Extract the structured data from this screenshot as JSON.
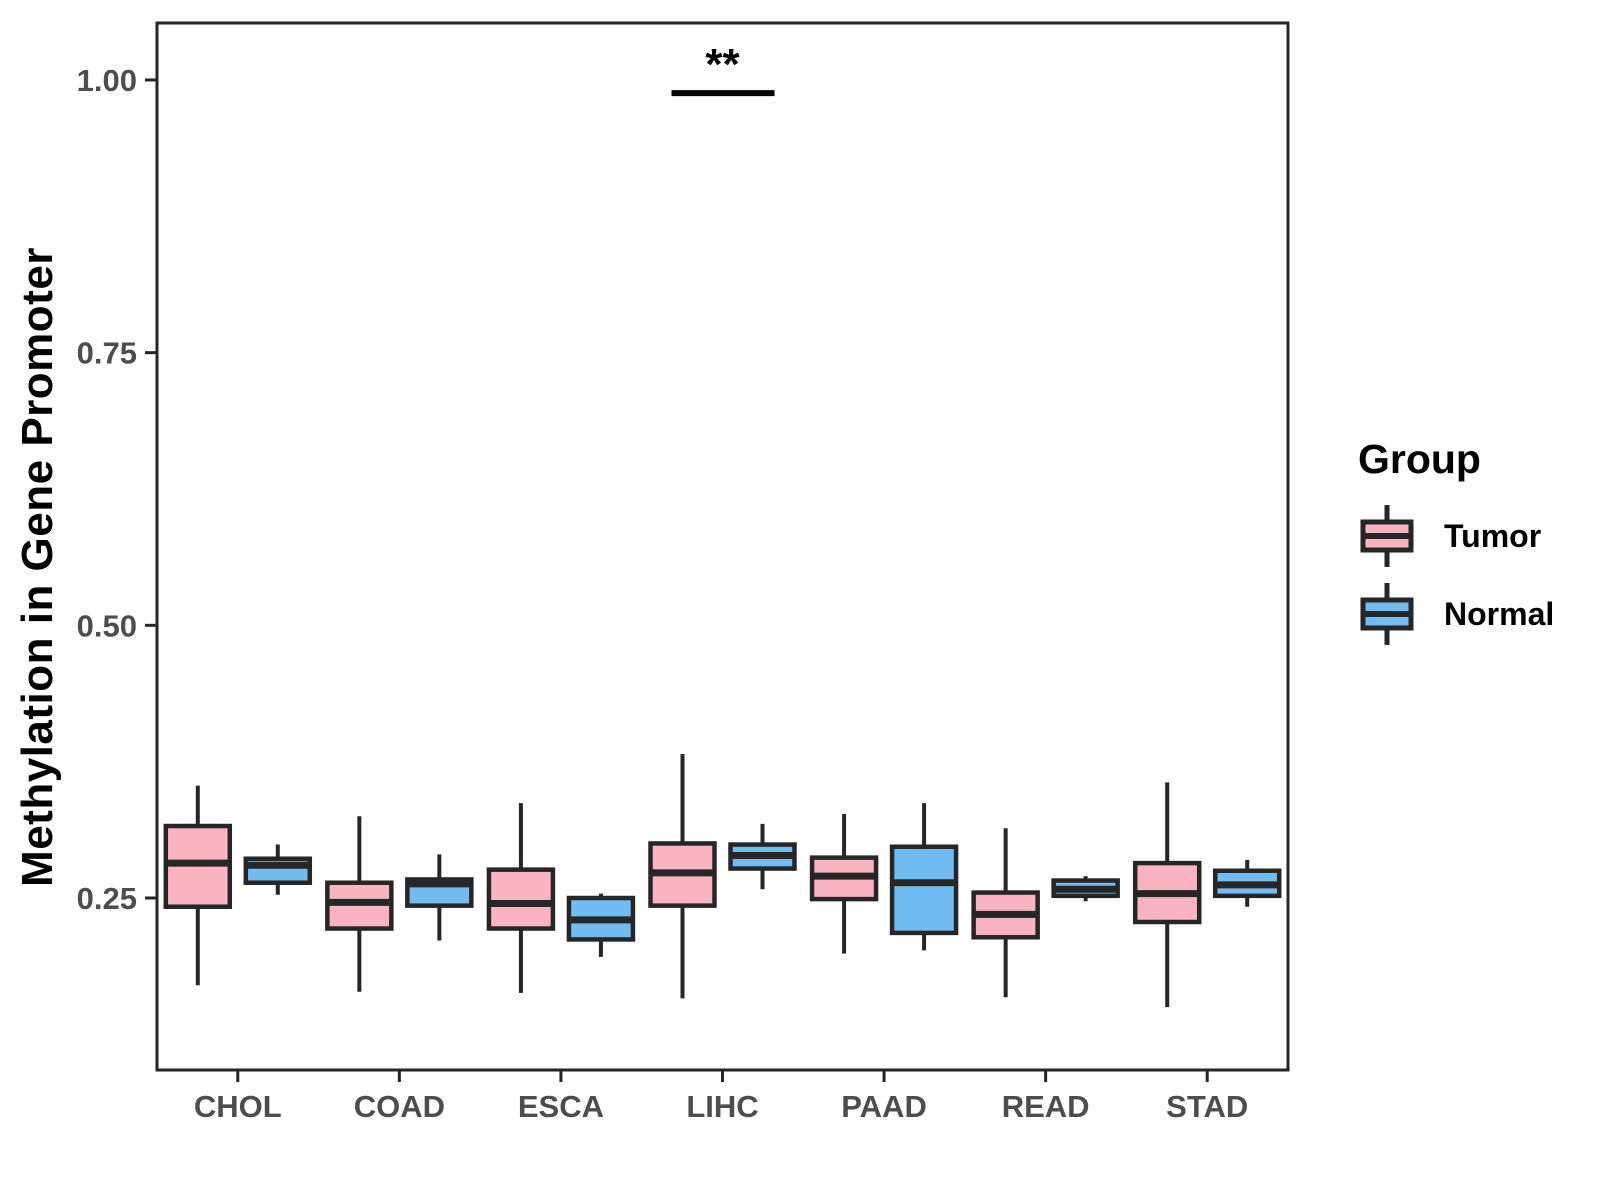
{
  "chart_data": {
    "type": "boxplot",
    "title": "",
    "xlabel": "",
    "ylabel": "Methylation in Gene Promoter",
    "categories": [
      "CHOL",
      "COAD",
      "ESCA",
      "LIHC",
      "PAAD",
      "READ",
      "STAD"
    ],
    "y_ticks": [
      {
        "label": "0.25",
        "value": 0.25
      },
      {
        "label": "0.50",
        "value": 0.5
      },
      {
        "label": "0.75",
        "value": 0.75
      },
      {
        "label": "1.00",
        "value": 1.0
      }
    ],
    "ylim": [
      0.092,
      1.052
    ],
    "grid": "off",
    "legend_position": "right",
    "series": [
      {
        "name": "Tumor",
        "color": "#FAB3C0",
        "boxes": [
          {
            "category": "CHOL",
            "min": 0.17,
            "q1": 0.242,
            "median": 0.282,
            "q3": 0.316,
            "max": 0.353
          },
          {
            "category": "COAD",
            "min": 0.164,
            "q1": 0.222,
            "median": 0.246,
            "q3": 0.264,
            "max": 0.325
          },
          {
            "category": "ESCA",
            "min": 0.163,
            "q1": 0.222,
            "median": 0.245,
            "q3": 0.276,
            "max": 0.337
          },
          {
            "category": "LIHC",
            "min": 0.158,
            "q1": 0.243,
            "median": 0.273,
            "q3": 0.3,
            "max": 0.382
          },
          {
            "category": "PAAD",
            "min": 0.199,
            "q1": 0.249,
            "median": 0.27,
            "q3": 0.287,
            "max": 0.327
          },
          {
            "category": "READ",
            "min": 0.159,
            "q1": 0.214,
            "median": 0.235,
            "q3": 0.255,
            "max": 0.314
          },
          {
            "category": "STAD",
            "min": 0.15,
            "q1": 0.228,
            "median": 0.254,
            "q3": 0.282,
            "max": 0.356
          }
        ]
      },
      {
        "name": "Normal",
        "color": "#71BCF2",
        "boxes": [
          {
            "category": "CHOL",
            "min": 0.253,
            "q1": 0.264,
            "median": 0.28,
            "q3": 0.286,
            "max": 0.299
          },
          {
            "category": "COAD",
            "min": 0.211,
            "q1": 0.243,
            "median": 0.263,
            "q3": 0.267,
            "max": 0.29
          },
          {
            "category": "ESCA",
            "min": 0.196,
            "q1": 0.212,
            "median": 0.23,
            "q3": 0.25,
            "max": 0.254
          },
          {
            "category": "LIHC",
            "min": 0.258,
            "q1": 0.277,
            "median": 0.289,
            "q3": 0.299,
            "max": 0.318
          },
          {
            "category": "PAAD",
            "min": 0.202,
            "q1": 0.218,
            "median": 0.264,
            "q3": 0.297,
            "max": 0.337
          },
          {
            "category": "READ",
            "min": 0.247,
            "q1": 0.252,
            "median": 0.258,
            "q3": 0.266,
            "max": 0.27
          },
          {
            "category": "STAD",
            "min": 0.242,
            "q1": 0.252,
            "median": 0.262,
            "q3": 0.275,
            "max": 0.285
          }
        ]
      }
    ],
    "annotation": {
      "label": "**",
      "category": "LIHC",
      "bar_y": 0.988
    }
  },
  "legend": {
    "title": "Group",
    "items": [
      {
        "label": "Tumor",
        "color": "#FAB3C0"
      },
      {
        "label": "Normal",
        "color": "#71BCF2"
      }
    ]
  },
  "colors": {
    "stroke": "#262626",
    "axis_text": "#4D4D4D",
    "axis_title": "#000000",
    "background": "#FFFFFF"
  }
}
